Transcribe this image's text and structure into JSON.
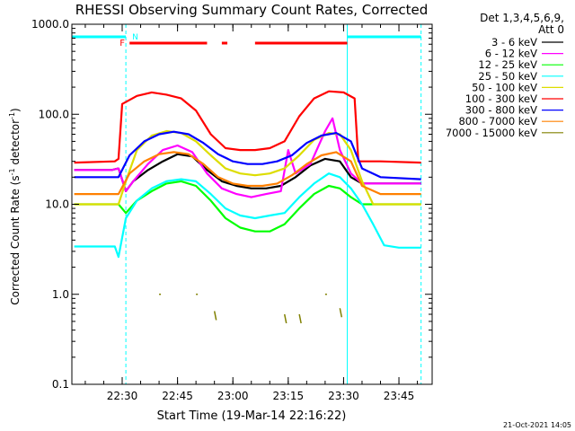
{
  "chart_data": {
    "type": "line",
    "title": "RHESSI Observing Summary Count Rates, Corrected",
    "xlabel": "Start Time (19-Mar-14 22:16:22)",
    "ylabel_main": "Corrected Count Rate (s",
    "ylabel_sup": "-1",
    "ylabel_rest": " detector",
    "ylabel_end": ")",
    "y_scale": "log",
    "ylim": [
      0.1,
      1000
    ],
    "xlim_minutes": [
      "22:16:22",
      "23:54:00"
    ],
    "x_ticks": [
      "22:30",
      "22:45",
      "23:00",
      "23:15",
      "23:30",
      "23:45"
    ],
    "y_ticks": [
      "0.1",
      "1.0",
      "10.0",
      "100.0",
      "1000.0"
    ],
    "grid": false,
    "legend_position": "right",
    "legend_header": [
      "Det 1,3,4,5,6,9,",
      "Att 0"
    ],
    "series": [
      {
        "name": "3 - 6 keV",
        "color": "#000000",
        "points": [
          [
            "22:17",
            24
          ],
          [
            "22:27",
            24
          ],
          [
            "22:29",
            25
          ],
          [
            "22:31",
            14
          ],
          [
            "22:33",
            18
          ],
          [
            "22:37",
            24
          ],
          [
            "22:41",
            30
          ],
          [
            "22:45",
            36
          ],
          [
            "22:49",
            34
          ],
          [
            "22:53",
            24
          ],
          [
            "22:57",
            18
          ],
          [
            "23:01",
            16
          ],
          [
            "23:05",
            15
          ],
          [
            "23:09",
            15
          ],
          [
            "23:13",
            16
          ],
          [
            "23:17",
            20
          ],
          [
            "23:21",
            27
          ],
          [
            "23:25",
            32
          ],
          [
            "23:29",
            30
          ],
          [
            "23:32",
            20
          ],
          [
            "23:35",
            17
          ],
          [
            "23:39",
            17
          ],
          [
            "23:45",
            17
          ],
          [
            "23:51",
            17
          ]
        ]
      },
      {
        "name": "6 - 12 keV",
        "color": "#ff00ff",
        "points": [
          [
            "22:17",
            24
          ],
          [
            "22:27",
            24
          ],
          [
            "22:29",
            25
          ],
          [
            "22:31",
            14
          ],
          [
            "22:33",
            18
          ],
          [
            "22:37",
            28
          ],
          [
            "22:41",
            40
          ],
          [
            "22:45",
            45
          ],
          [
            "22:49",
            38
          ],
          [
            "22:53",
            22
          ],
          [
            "22:57",
            15
          ],
          [
            "23:01",
            13
          ],
          [
            "23:05",
            12
          ],
          [
            "23:09",
            13
          ],
          [
            "23:13",
            14
          ],
          [
            "23:15",
            40
          ],
          [
            "23:17",
            22
          ],
          [
            "23:21",
            28
          ],
          [
            "23:25",
            65
          ],
          [
            "23:27",
            90
          ],
          [
            "23:29",
            40
          ],
          [
            "23:32",
            22
          ],
          [
            "23:35",
            17
          ],
          [
            "23:45",
            17
          ],
          [
            "23:51",
            17
          ]
        ]
      },
      {
        "name": "12 - 25 keV",
        "color": "#00ff00",
        "points": [
          [
            "22:17",
            10
          ],
          [
            "22:27",
            10
          ],
          [
            "22:29",
            10
          ],
          [
            "22:31",
            8
          ],
          [
            "22:34",
            11
          ],
          [
            "22:38",
            14
          ],
          [
            "22:42",
            17
          ],
          [
            "22:46",
            18
          ],
          [
            "22:50",
            16
          ],
          [
            "22:54",
            11
          ],
          [
            "22:58",
            7
          ],
          [
            "23:02",
            5.5
          ],
          [
            "23:06",
            5
          ],
          [
            "23:10",
            5
          ],
          [
            "23:14",
            6
          ],
          [
            "23:18",
            9
          ],
          [
            "23:22",
            13
          ],
          [
            "23:26",
            16
          ],
          [
            "23:29",
            15
          ],
          [
            "23:32",
            12
          ],
          [
            "23:35",
            10
          ],
          [
            "23:45",
            10
          ],
          [
            "23:51",
            10
          ]
        ]
      },
      {
        "name": "25 - 50 keV",
        "color": "#00ffff",
        "points": [
          [
            "22:17",
            3.4
          ],
          [
            "22:28",
            3.4
          ],
          [
            "22:29",
            2.6
          ],
          [
            "22:31",
            7
          ],
          [
            "22:34",
            11
          ],
          [
            "22:38",
            15
          ],
          [
            "22:42",
            18
          ],
          [
            "22:46",
            19
          ],
          [
            "22:50",
            18
          ],
          [
            "22:54",
            13
          ],
          [
            "22:58",
            9
          ],
          [
            "23:02",
            7.5
          ],
          [
            "23:06",
            7
          ],
          [
            "23:10",
            7.5
          ],
          [
            "23:14",
            8
          ],
          [
            "23:18",
            12
          ],
          [
            "23:22",
            17
          ],
          [
            "23:26",
            22
          ],
          [
            "23:29",
            20
          ],
          [
            "23:32",
            15
          ],
          [
            "23:35",
            10
          ],
          [
            "23:38",
            6
          ],
          [
            "23:41",
            3.5
          ],
          [
            "23:45",
            3.3
          ],
          [
            "23:51",
            3.3
          ]
        ]
      },
      {
        "name": "50 - 100 keV",
        "color": "#dddd00",
        "points": [
          [
            "22:17",
            10
          ],
          [
            "22:28",
            10
          ],
          [
            "22:29",
            10
          ],
          [
            "22:31",
            18
          ],
          [
            "22:34",
            40
          ],
          [
            "22:38",
            58
          ],
          [
            "22:42",
            65
          ],
          [
            "22:46",
            62
          ],
          [
            "22:50",
            50
          ],
          [
            "22:54",
            35
          ],
          [
            "22:58",
            25
          ],
          [
            "23:02",
            22
          ],
          [
            "23:06",
            21
          ],
          [
            "23:10",
            22
          ],
          [
            "23:14",
            25
          ],
          [
            "23:18",
            35
          ],
          [
            "23:22",
            52
          ],
          [
            "23:26",
            62
          ],
          [
            "23:29",
            60
          ],
          [
            "23:32",
            40
          ],
          [
            "23:35",
            18
          ],
          [
            "23:38",
            10
          ],
          [
            "23:45",
            10
          ],
          [
            "23:51",
            10
          ]
        ]
      },
      {
        "name": "100 - 300 keV",
        "color": "#ff0000",
        "points": [
          [
            "22:17",
            29
          ],
          [
            "22:28",
            30
          ],
          [
            "22:29",
            32
          ],
          [
            "22:30",
            130
          ],
          [
            "22:34",
            160
          ],
          [
            "22:38",
            175
          ],
          [
            "22:42",
            165
          ],
          [
            "22:46",
            150
          ],
          [
            "22:50",
            110
          ],
          [
            "22:54",
            60
          ],
          [
            "22:58",
            42
          ],
          [
            "23:02",
            40
          ],
          [
            "23:06",
            40
          ],
          [
            "23:10",
            42
          ],
          [
            "23:14",
            50
          ],
          [
            "23:18",
            95
          ],
          [
            "23:22",
            150
          ],
          [
            "23:26",
            180
          ],
          [
            "23:30",
            175
          ],
          [
            "23:33",
            150
          ],
          [
            "23:34",
            30
          ],
          [
            "23:40",
            30
          ],
          [
            "23:51",
            29
          ]
        ]
      },
      {
        "name": "300 - 800 keV",
        "color": "#0000ff",
        "points": [
          [
            "22:17",
            20
          ],
          [
            "22:28",
            20
          ],
          [
            "22:29",
            20
          ],
          [
            "22:32",
            35
          ],
          [
            "22:36",
            50
          ],
          [
            "22:40",
            60
          ],
          [
            "22:44",
            64
          ],
          [
            "22:48",
            60
          ],
          [
            "22:52",
            48
          ],
          [
            "22:56",
            36
          ],
          [
            "23:00",
            30
          ],
          [
            "23:04",
            28
          ],
          [
            "23:08",
            28
          ],
          [
            "23:12",
            30
          ],
          [
            "23:16",
            35
          ],
          [
            "23:20",
            48
          ],
          [
            "23:24",
            58
          ],
          [
            "23:28",
            62
          ],
          [
            "23:32",
            50
          ],
          [
            "23:35",
            25
          ],
          [
            "23:40",
            20
          ],
          [
            "23:51",
            19
          ]
        ]
      },
      {
        "name": "800 - 7000 keV",
        "color": "#ff8000",
        "points": [
          [
            "22:17",
            13
          ],
          [
            "22:28",
            13
          ],
          [
            "22:29",
            13
          ],
          [
            "22:32",
            22
          ],
          [
            "22:36",
            30
          ],
          [
            "22:40",
            36
          ],
          [
            "22:44",
            38
          ],
          [
            "22:48",
            36
          ],
          [
            "22:52",
            28
          ],
          [
            "22:56",
            20
          ],
          [
            "23:00",
            17
          ],
          [
            "23:04",
            16
          ],
          [
            "23:08",
            16
          ],
          [
            "23:12",
            17
          ],
          [
            "23:16",
            21
          ],
          [
            "23:20",
            28
          ],
          [
            "23:24",
            35
          ],
          [
            "23:28",
            38
          ],
          [
            "23:32",
            30
          ],
          [
            "23:35",
            16
          ],
          [
            "23:40",
            13
          ],
          [
            "23:51",
            13
          ]
        ]
      },
      {
        "name": "7000 - 15000 keV",
        "color": "#808000",
        "points": [
          [
            "22:40",
            1.0
          ],
          [
            "22:50",
            1.0
          ],
          [
            "22:55",
            0.65
          ],
          [
            "23:14",
            0.6
          ],
          [
            "23:18",
            0.6
          ],
          [
            "23:25",
            1.0
          ],
          [
            "23:29",
            0.7
          ]
        ]
      }
    ],
    "flags": {
      "N_label": "N",
      "F_label": "F",
      "N_color": "#00ffff",
      "F_color": "#ff0000",
      "N_intervals": [
        [
          "22:16:22",
          "22:31"
        ],
        [
          "23:31",
          "23:51"
        ]
      ],
      "F_intervals": [
        [
          "22:32",
          "22:53"
        ],
        [
          "22:57",
          "22:58:30"
        ],
        [
          "23:06",
          "23:31"
        ]
      ],
      "dashed_lines": [
        "22:31",
        "23:51"
      ],
      "solid_lines": [
        "22:16:22",
        "23:31"
      ]
    },
    "timestamp": "21-Oct-2021 14:05"
  }
}
